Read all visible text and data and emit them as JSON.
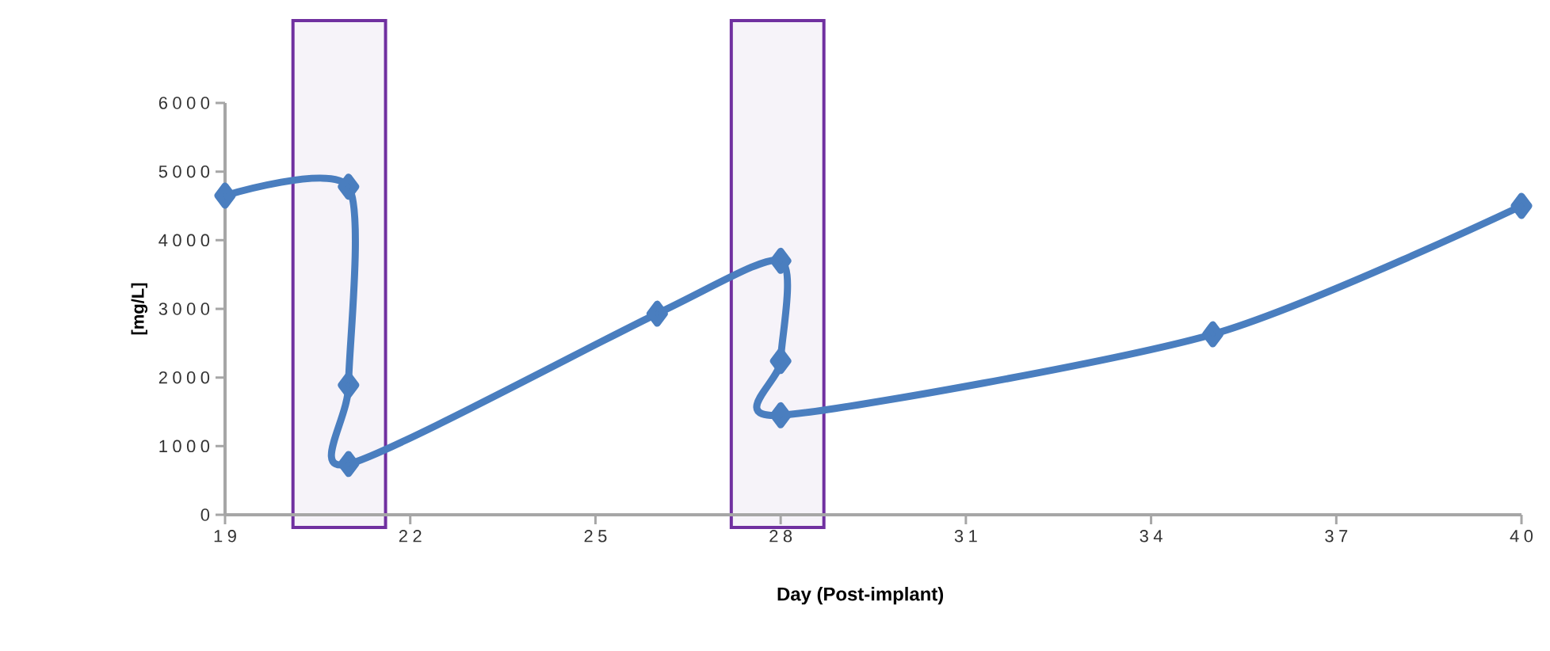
{
  "chart_data": {
    "type": "line",
    "xlabel": "Day (Post-implant)",
    "ylabel": "[mg/L]",
    "xlim": [
      19,
      40
    ],
    "ylim": [
      0,
      6000
    ],
    "xticks": [
      19,
      22,
      25,
      28,
      31,
      34,
      37,
      40
    ],
    "yticks": [
      0,
      1000,
      2000,
      3000,
      4000,
      5000,
      6000
    ],
    "series": [
      {
        "color": "#4a7ebf",
        "x": [
          19,
          21,
          21,
          21,
          26,
          28,
          28,
          28,
          35,
          40
        ],
        "values": [
          4650,
          4780,
          1890,
          740,
          2930,
          3700,
          2240,
          1450,
          2630,
          4500
        ]
      }
    ],
    "bands": [
      {
        "axis": "x",
        "from": 20.1,
        "to": 21.6,
        "label": null,
        "color": "#7030a0"
      },
      {
        "axis": "x",
        "from": 27.2,
        "to": 28.7,
        "label": null,
        "color": "#7030a0"
      }
    ],
    "marker": "diamond",
    "line_style": "solid",
    "grid": false
  }
}
